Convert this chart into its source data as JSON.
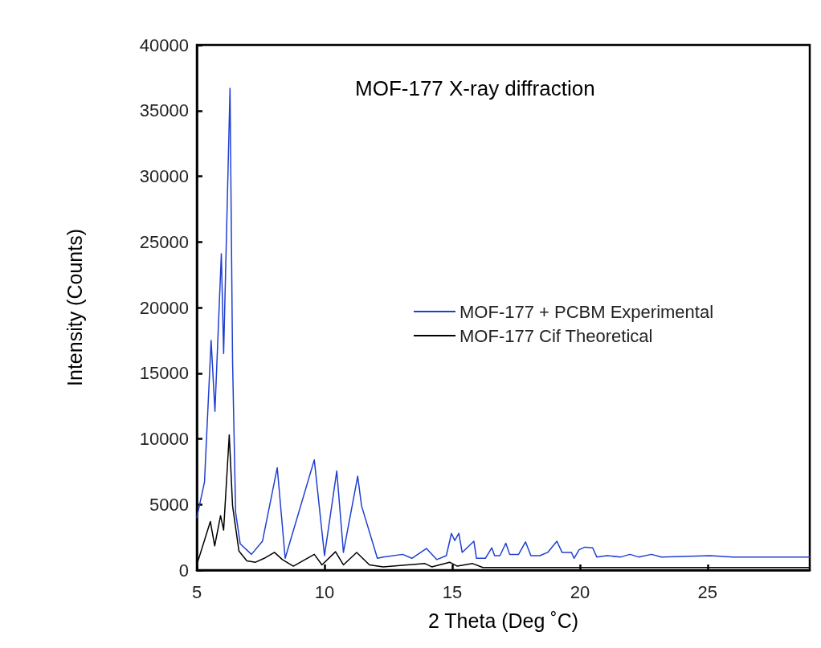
{
  "chart_data": {
    "type": "line",
    "title": "MOF-177 X-ray diffraction",
    "xlabel": "2 Theta (Deg ˚C)",
    "ylabel": "Intensity (Counts)",
    "xlim": [
      5,
      29
    ],
    "xticks": [
      5,
      10,
      15,
      20,
      25
    ],
    "ylim": [
      0,
      40000
    ],
    "yticks": [
      0,
      5000,
      10000,
      15000,
      20000,
      25000,
      30000,
      35000,
      40000
    ],
    "grid": false,
    "legend": "right",
    "marker": "none",
    "line_style": "solid",
    "series": [
      {
        "name": "MOF-177 + PCBM Experimental",
        "color": "#1f3fd0",
        "x": [
          5,
          5.3,
          5.56,
          5.71,
          5.96,
          6.05,
          6.3,
          6.4,
          6.52,
          6.7,
          7.14,
          7.57,
          8.15,
          8.46,
          9.6,
          10.0,
          10.48,
          10.74,
          11.3,
          11.45,
          12.07,
          12.3,
          13.06,
          13.42,
          13.99,
          14.4,
          14.77,
          14.97,
          15.1,
          15.26,
          15.39,
          15.85,
          15.95,
          16.3,
          16.55,
          16.66,
          16.87,
          17.1,
          17.25,
          17.6,
          17.87,
          18.08,
          18.43,
          18.74,
          19.1,
          19.3,
          19.67,
          19.77,
          19.97,
          20.19,
          20.5,
          20.66,
          21.06,
          21.6,
          21.96,
          22.3,
          22.8,
          23.2,
          25.1,
          26,
          27,
          28,
          29
        ],
        "values": [
          4000,
          6700,
          17500,
          12100,
          24100,
          16500,
          36700,
          15900,
          4400,
          2000,
          1200,
          2200,
          7800,
          900,
          8400,
          1100,
          7550,
          1350,
          7150,
          4900,
          900,
          1000,
          1200,
          900,
          1650,
          800,
          1100,
          2800,
          2250,
          2800,
          1350,
          2200,
          900,
          900,
          1700,
          1100,
          1100,
          2050,
          1200,
          1200,
          2150,
          1100,
          1100,
          1350,
          2200,
          1350,
          1350,
          900,
          1550,
          1750,
          1700,
          1000,
          1100,
          1000,
          1200,
          1000,
          1200,
          1000,
          1100,
          1000,
          1000,
          1000,
          1000
        ]
      },
      {
        "name": "MOF-177 Cif Theoretical",
        "color": "#000000",
        "x": [
          5.03,
          5.53,
          5.7,
          5.93,
          6.05,
          6.27,
          6.4,
          6.65,
          6.96,
          7.3,
          7.64,
          8.04,
          8.35,
          8.78,
          9.6,
          9.9,
          10.43,
          10.74,
          11.26,
          11.76,
          12.3,
          13.93,
          14.2,
          14.9,
          15.2,
          15.8,
          16.2,
          18,
          22,
          26,
          29
        ],
        "values": [
          600,
          3700,
          1850,
          4150,
          3050,
          10300,
          4900,
          1450,
          700,
          600,
          900,
          1350,
          800,
          300,
          1200,
          400,
          1400,
          400,
          1350,
          400,
          250,
          500,
          250,
          600,
          300,
          500,
          200,
          200,
          200,
          200,
          200
        ]
      }
    ]
  }
}
